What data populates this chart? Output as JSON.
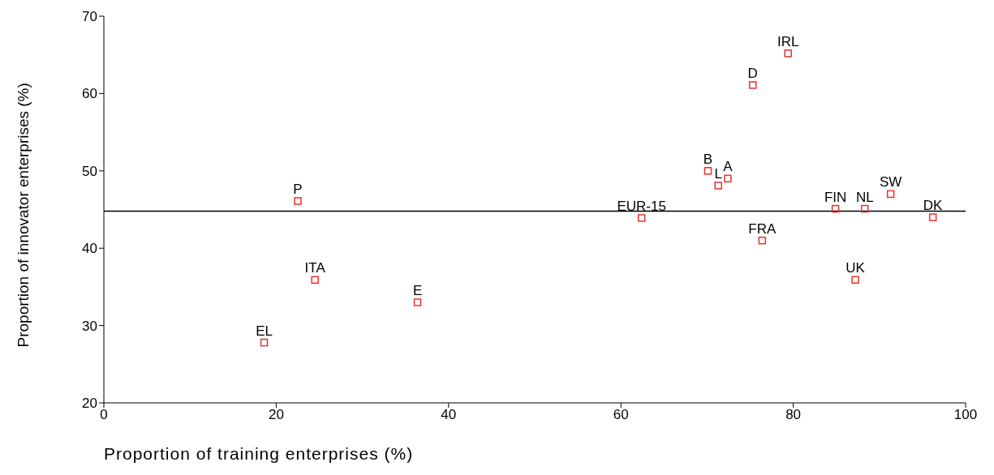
{
  "chart_data": {
    "type": "scatter",
    "xlabel": "Proportion of training enterprises (%)",
    "ylabel": "Proportion of innovator enterprises (%)",
    "x": [
      79.4,
      75.3,
      70.1,
      72.4,
      71.3,
      22.5,
      91.3,
      84.9,
      88.3,
      96.2,
      62.4,
      76.4,
      87.2,
      24.5,
      36.4,
      18.6
    ],
    "values": [
      65.2,
      61.1,
      50,
      49,
      48.1,
      46.1,
      47,
      45.1,
      45.1,
      44,
      43.9,
      41,
      35.9,
      35.9,
      33,
      27.8
    ],
    "color": "#e8322e",
    "marker": "square",
    "xlim": [
      0,
      100
    ],
    "xticks": [
      0,
      20,
      40,
      60,
      80,
      100
    ],
    "ylim": [
      20,
      70
    ],
    "yticks": [
      20,
      30,
      40,
      50,
      60,
      70
    ],
    "grid": false,
    "legend": false,
    "ref_lines": [
      {
        "axis": "y",
        "value": 44.8,
        "color": "#000000"
      }
    ],
    "annotations": [
      {
        "text": "IRL",
        "x": 79.4,
        "y": 65.2
      },
      {
        "text": "D",
        "x": 75.3,
        "y": 61.1
      },
      {
        "text": "B",
        "x": 70.1,
        "y": 50
      },
      {
        "text": "A",
        "x": 72.4,
        "y": 49
      },
      {
        "text": "L",
        "x": 71.3,
        "y": 48.1
      },
      {
        "text": "P",
        "x": 22.5,
        "y": 46.1
      },
      {
        "text": "SW",
        "x": 91.3,
        "y": 47
      },
      {
        "text": "FIN",
        "x": 84.9,
        "y": 45.1
      },
      {
        "text": "NL",
        "x": 88.3,
        "y": 45.1
      },
      {
        "text": "DK",
        "x": 96.2,
        "y": 44
      },
      {
        "text": "EUR-15",
        "x": 62.4,
        "y": 43.9
      },
      {
        "text": "FRA",
        "x": 76.4,
        "y": 41
      },
      {
        "text": "UK",
        "x": 87.2,
        "y": 35.9
      },
      {
        "text": "ITA",
        "x": 24.5,
        "y": 35.9
      },
      {
        "text": "E",
        "x": 36.4,
        "y": 33
      },
      {
        "text": "EL",
        "x": 18.6,
        "y": 27.8
      }
    ]
  }
}
